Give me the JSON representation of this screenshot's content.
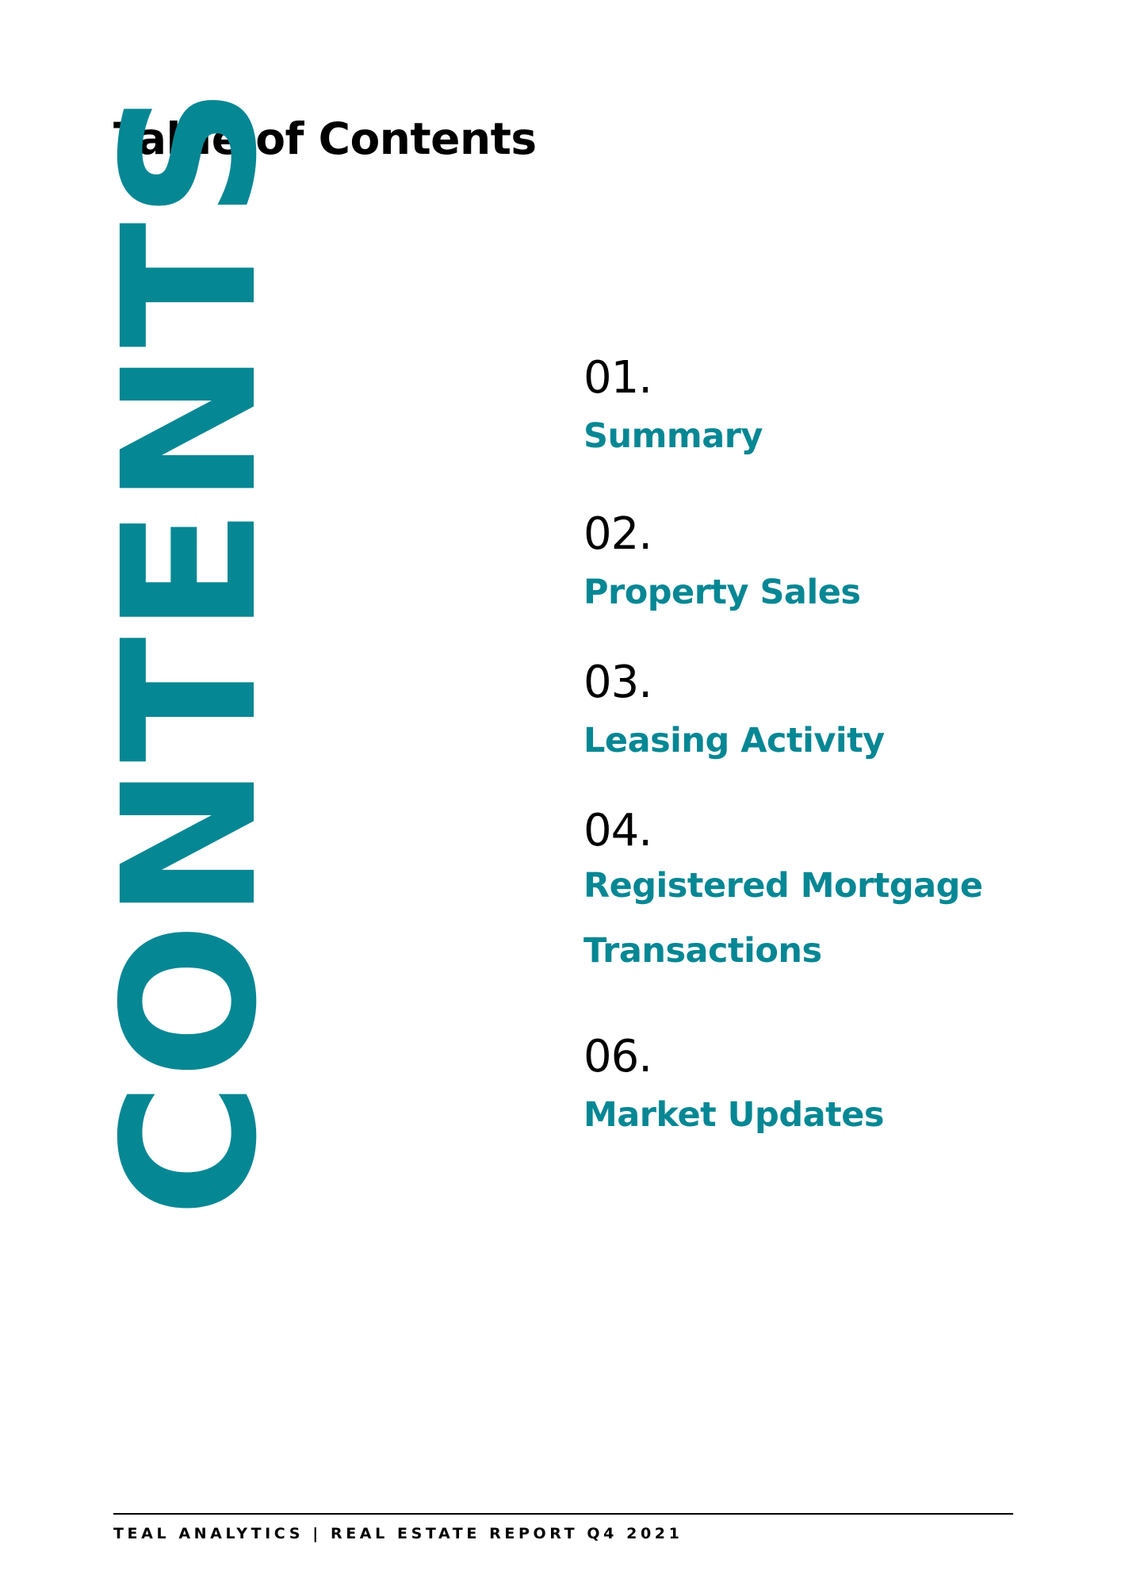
{
  "header": {
    "title": "Table of Contents"
  },
  "decorative_word": "CONTENTS",
  "toc": {
    "items": [
      {
        "number": "01.",
        "label": "Summary"
      },
      {
        "number": "02.",
        "label": "Property Sales"
      },
      {
        "number": "03.",
        "label": "Leasing Activity"
      },
      {
        "number": "04.",
        "label": "Registered Mortgage Transactions"
      },
      {
        "number": "06.",
        "label": "Market Updates"
      }
    ]
  },
  "footer": {
    "text": "TEAL ANALYTICS | REAL ESTATE REPORT Q4 2021"
  },
  "colors": {
    "accent": "#068794",
    "text": "#000000",
    "background": "#ffffff"
  }
}
